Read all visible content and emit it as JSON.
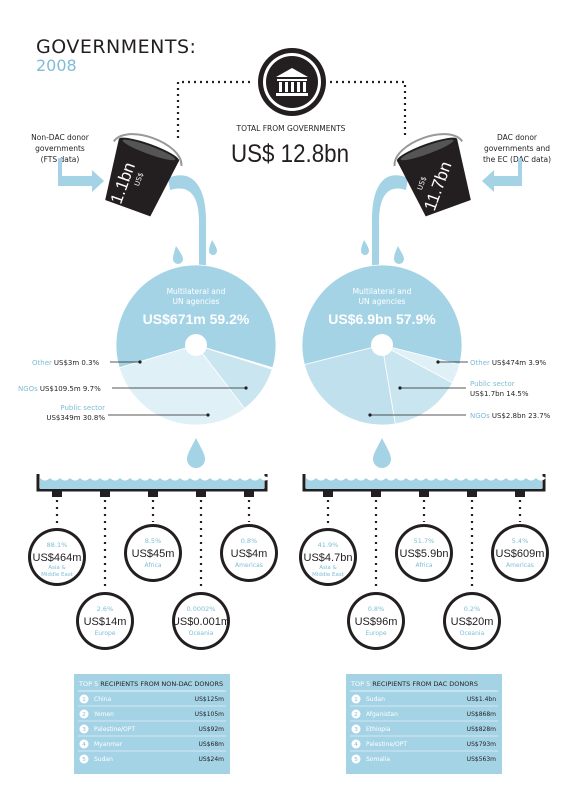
{
  "title": {
    "main": "GOVERNMENTS:",
    "year": "2008"
  },
  "center": {
    "label": "TOTAL FROM GOVERNMENTS",
    "value": "US$ 12.8bn"
  },
  "left_source": {
    "lines": [
      "Non-DAC donor",
      "governments",
      "(FTS data)"
    ],
    "bucket_currency": "US$",
    "bucket_amount": "1.1bn"
  },
  "right_source": {
    "lines": [
      "DAC donor",
      "governments and",
      "the EC (DAC data)"
    ],
    "bucket_currency": "US$",
    "bucket_amount": "11.7bn"
  },
  "left_pie": {
    "top_lines": [
      "Multilateral and",
      "UN agencies"
    ],
    "top_value": "US$671m  59.2%",
    "labels": [
      {
        "name": "Other",
        "value": "US$3m  0.3%"
      },
      {
        "name": "NGOs",
        "value": "US$109.5m  9.7%"
      },
      {
        "name": "Public sector",
        "value": "US$349m  30.8%"
      }
    ],
    "shares": [
      59.2,
      0.3,
      9.7,
      30.8
    ]
  },
  "right_pie": {
    "top_lines": [
      "Multilateral and",
      "UN agencies"
    ],
    "top_value": "US$6.9bn  57.9%",
    "labels": [
      {
        "name": "Other",
        "value": "US$474m  3.9%"
      },
      {
        "name": "Public sector",
        "value": "US$1.7bn  14.5%"
      },
      {
        "name": "NGOs",
        "value": "US$2.8bn  23.7%"
      }
    ],
    "shares": [
      57.9,
      3.9,
      14.5,
      23.7
    ]
  },
  "left_regions": [
    {
      "pct": "88.1%",
      "amount": "US$464m",
      "region": "Asia &\nMiddle East"
    },
    {
      "pct": "2.6%",
      "amount": "US$14m",
      "region": "Europe"
    },
    {
      "pct": "8.5%",
      "amount": "US$45m",
      "region": "Africa"
    },
    {
      "pct": "0.0002%",
      "amount": "US$0.001m",
      "region": "Oceania"
    },
    {
      "pct": "0.8%",
      "amount": "US$4m",
      "region": "Americas"
    }
  ],
  "right_regions": [
    {
      "pct": "41.9%",
      "amount": "US$4.7bn",
      "region": "Asia &\nMiddle East"
    },
    {
      "pct": "0.8%",
      "amount": "US$96m",
      "region": "Europe"
    },
    {
      "pct": "51.7%",
      "amount": "US$5.9bn",
      "region": "Africa"
    },
    {
      "pct": "0.2%",
      "amount": "US$20m",
      "region": "Oceania"
    },
    {
      "pct": "5.4%",
      "amount": "US$609m",
      "region": "Americas"
    }
  ],
  "left_top5": {
    "title_num": "TOP 5",
    "title_rest": " RECIPIENTS FROM NON-DAC DONORS",
    "rows": [
      {
        "n": "1",
        "name": "China",
        "value": "US$125m"
      },
      {
        "n": "2",
        "name": "Yemen",
        "value": "US$105m"
      },
      {
        "n": "3",
        "name": "Palestine/OPT",
        "value": "US$92m"
      },
      {
        "n": "4",
        "name": "Myanmar",
        "value": "US$68m"
      },
      {
        "n": "5",
        "name": "Sudan",
        "value": "US$24m"
      }
    ]
  },
  "right_top5": {
    "title_num": "TOP 5",
    "title_rest": " RECIPIENTS FROM DAC DONORS",
    "rows": [
      {
        "n": "1",
        "name": "Sudan",
        "value": "US$1.4bn"
      },
      {
        "n": "2",
        "name": "Afganistan",
        "value": "US$868m"
      },
      {
        "n": "3",
        "name": "Ethiopia",
        "value": "US$828m"
      },
      {
        "n": "4",
        "name": "Palestine/OPT",
        "value": "US$793m"
      },
      {
        "n": "5",
        "name": "Somalia",
        "value": "US$563m"
      }
    ]
  },
  "colors": {
    "dark": "#231f20",
    "blue": "#a5d3e6",
    "blue_light": "#c9e5f0",
    "blue_lighter": "#dff0f6",
    "accent_text": "#7fbdd6"
  }
}
